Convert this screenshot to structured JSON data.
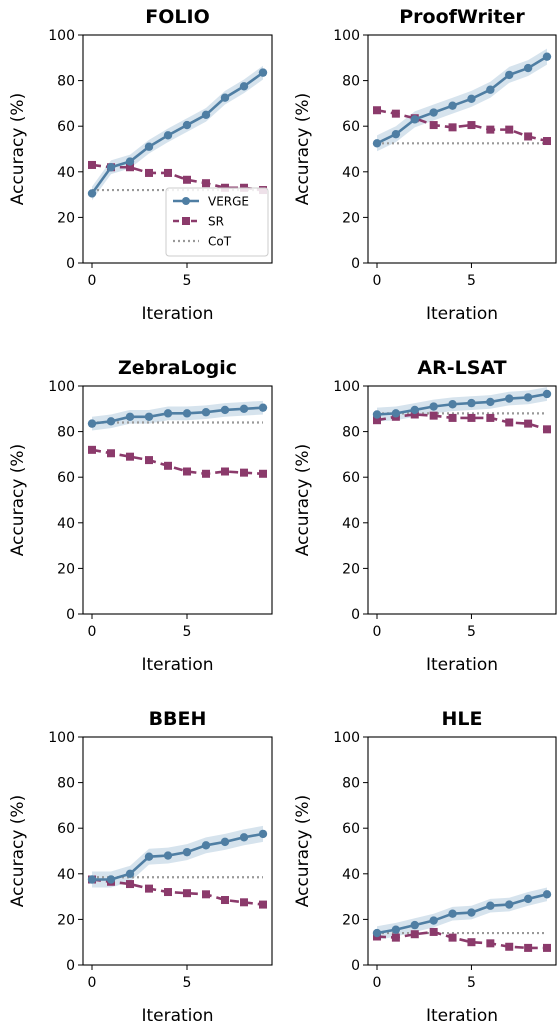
{
  "colors": {
    "verge": "#4f7ea3",
    "verge_band": "#c8d9e7",
    "sr": "#8b3a6b",
    "cot": "#999999"
  },
  "legend": {
    "location": "inside lower-right of first panel",
    "items": [
      "VERGE",
      "SR",
      "CoT"
    ]
  },
  "chart_data": [
    {
      "type": "line",
      "title": "FOLIO",
      "xlabel": "Iteration",
      "ylabel": "Accuracy (%)",
      "xlim": [
        0,
        9
      ],
      "ylim": [
        0,
        100
      ],
      "xticks": [
        0,
        5
      ],
      "yticks": [
        0,
        20,
        40,
        60,
        80,
        100
      ],
      "x": [
        0,
        1,
        2,
        3,
        4,
        5,
        6,
        7,
        8,
        9
      ],
      "series": [
        {
          "name": "VERGE",
          "style": "solid",
          "marker": "circle",
          "values": [
            30.5,
            42,
            44.5,
            51,
            56,
            60.5,
            65,
            72.5,
            77.5,
            83.5
          ],
          "band": 3
        },
        {
          "name": "SR",
          "style": "dashed",
          "marker": "square",
          "values": [
            43,
            42,
            42,
            39.5,
            39.5,
            36.5,
            35,
            33,
            33,
            32
          ]
        },
        {
          "name": "CoT",
          "style": "dotted",
          "marker": "none",
          "values": [
            32,
            32,
            32,
            32,
            32,
            32,
            32,
            32,
            32,
            32
          ]
        }
      ]
    },
    {
      "type": "line",
      "title": "ProofWriter",
      "xlabel": "Iteration",
      "ylabel": "Accuracy (%)",
      "xlim": [
        0,
        9
      ],
      "ylim": [
        0,
        100
      ],
      "xticks": [
        0,
        5
      ],
      "yticks": [
        0,
        20,
        40,
        60,
        80,
        100
      ],
      "x": [
        0,
        1,
        2,
        3,
        4,
        5,
        6,
        7,
        8,
        9
      ],
      "series": [
        {
          "name": "VERGE",
          "style": "solid",
          "marker": "circle",
          "values": [
            52.5,
            56.5,
            63,
            66,
            69,
            72,
            76,
            82.5,
            85.5,
            90.5
          ],
          "band": 3.5
        },
        {
          "name": "SR",
          "style": "dashed",
          "marker": "square",
          "values": [
            67,
            65.5,
            63.5,
            60.5,
            59.5,
            60.5,
            58.5,
            58.5,
            55.5,
            53.5
          ]
        },
        {
          "name": "CoT",
          "style": "dotted",
          "marker": "none",
          "values": [
            52.5,
            52.5,
            52.5,
            52.5,
            52.5,
            52.5,
            52.5,
            52.5,
            52.5,
            52.5
          ]
        }
      ]
    },
    {
      "type": "line",
      "title": "ZebraLogic",
      "xlabel": "Iteration",
      "ylabel": "Accuracy (%)",
      "xlim": [
        0,
        9
      ],
      "ylim": [
        0,
        100
      ],
      "xticks": [
        0,
        5
      ],
      "yticks": [
        0,
        20,
        40,
        60,
        80,
        100
      ],
      "x": [
        0,
        1,
        2,
        3,
        4,
        5,
        6,
        7,
        8,
        9
      ],
      "series": [
        {
          "name": "VERGE",
          "style": "solid",
          "marker": "circle",
          "values": [
            83.5,
            84.5,
            86.5,
            86.5,
            88,
            88,
            88.5,
            89.5,
            90,
            90.5
          ],
          "band": 3
        },
        {
          "name": "SR",
          "style": "dashed",
          "marker": "square",
          "values": [
            72,
            70.5,
            69,
            67.5,
            65,
            62.5,
            61.5,
            62.5,
            62,
            61.5
          ]
        },
        {
          "name": "CoT",
          "style": "dotted",
          "marker": "none",
          "values": [
            84,
            84,
            84,
            84,
            84,
            84,
            84,
            84,
            84,
            84
          ]
        }
      ]
    },
    {
      "type": "line",
      "title": "AR-LSAT",
      "xlabel": "Iteration",
      "ylabel": "Accuracy (%)",
      "xlim": [
        0,
        9
      ],
      "ylim": [
        0,
        100
      ],
      "xticks": [
        0,
        5
      ],
      "yticks": [
        0,
        20,
        40,
        60,
        80,
        100
      ],
      "x": [
        0,
        1,
        2,
        3,
        4,
        5,
        6,
        7,
        8,
        9
      ],
      "series": [
        {
          "name": "VERGE",
          "style": "solid",
          "marker": "circle",
          "values": [
            87.5,
            88,
            89.5,
            91,
            92,
            92.5,
            93,
            94.5,
            95,
            96.5
          ],
          "band": 3
        },
        {
          "name": "SR",
          "style": "dashed",
          "marker": "square",
          "values": [
            85,
            86.5,
            87.5,
            87,
            86,
            86,
            86,
            84,
            83.5,
            81
          ]
        },
        {
          "name": "CoT",
          "style": "dotted",
          "marker": "none",
          "values": [
            88,
            88,
            88,
            88,
            88,
            88,
            88,
            88,
            88,
            88
          ]
        }
      ]
    },
    {
      "type": "line",
      "title": "BBEH",
      "xlabel": "Iteration",
      "ylabel": "Accuracy (%)",
      "xlim": [
        0,
        9
      ],
      "ylim": [
        0,
        100
      ],
      "xticks": [
        0,
        5
      ],
      "yticks": [
        0,
        20,
        40,
        60,
        80,
        100
      ],
      "x": [
        0,
        1,
        2,
        3,
        4,
        5,
        6,
        7,
        8,
        9
      ],
      "series": [
        {
          "name": "VERGE",
          "style": "solid",
          "marker": "circle",
          "values": [
            37.5,
            37.5,
            40,
            47.5,
            48,
            49.5,
            52.5,
            54,
            56,
            57.5
          ],
          "band": 3.5
        },
        {
          "name": "SR",
          "style": "dashed",
          "marker": "square",
          "values": [
            37.5,
            36.5,
            35.5,
            33.5,
            32,
            31.5,
            31,
            28.5,
            27.5,
            26.5
          ]
        },
        {
          "name": "CoT",
          "style": "dotted",
          "marker": "none",
          "values": [
            38.5,
            38.5,
            38.5,
            38.5,
            38.5,
            38.5,
            38.5,
            38.5,
            38.5,
            38.5
          ]
        }
      ]
    },
    {
      "type": "line",
      "title": "HLE",
      "xlabel": "Iteration",
      "ylabel": "Accuracy (%)",
      "xlim": [
        0,
        9
      ],
      "ylim": [
        0,
        100
      ],
      "xticks": [
        0,
        5
      ],
      "yticks": [
        0,
        20,
        40,
        60,
        80,
        100
      ],
      "x": [
        0,
        1,
        2,
        3,
        4,
        5,
        6,
        7,
        8,
        9
      ],
      "series": [
        {
          "name": "VERGE",
          "style": "solid",
          "marker": "circle",
          "values": [
            14,
            15.5,
            17.5,
            19.5,
            22.5,
            23,
            26,
            26.5,
            29,
            31
          ],
          "band": 3
        },
        {
          "name": "SR",
          "style": "dashed",
          "marker": "square",
          "values": [
            12.5,
            12,
            13.5,
            14.5,
            12,
            10,
            9.5,
            8,
            7.5,
            7.5
          ]
        },
        {
          "name": "CoT",
          "style": "dotted",
          "marker": "none",
          "values": [
            14,
            14,
            14,
            14,
            14,
            14,
            14,
            14,
            14,
            14
          ]
        }
      ]
    }
  ]
}
